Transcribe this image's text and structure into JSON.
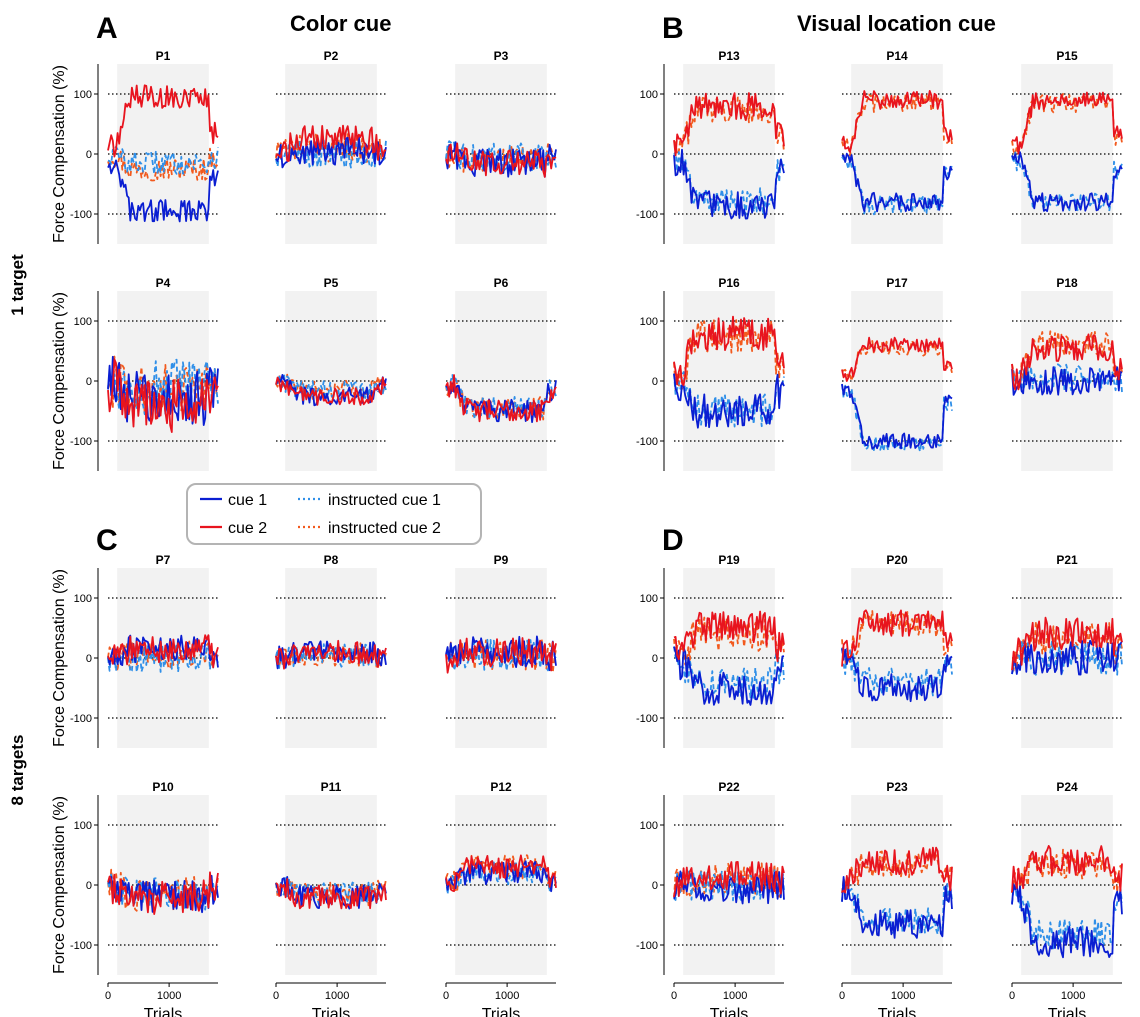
{
  "figure": {
    "panel_letters": [
      "A",
      "B",
      "C",
      "D"
    ],
    "group_titles": {
      "A": "Color cue",
      "B": "Visual location cue"
    },
    "row_labels": {
      "top": "1 target",
      "bottom": "8 targets"
    },
    "ylabel": "Force Compensation (%)",
    "xlabel": "Trials",
    "yticks": [
      "100",
      "0",
      "-100"
    ],
    "xticks": [
      "0",
      "1000"
    ]
  },
  "legend": {
    "entries": [
      {
        "label": "cue 1",
        "color": "#0a1ed2",
        "style": "solid"
      },
      {
        "label": "instructed cue 1",
        "color": "#2f8fe8",
        "style": "dotted"
      },
      {
        "label": "cue 2",
        "color": "#e8141e",
        "style": "solid"
      },
      {
        "label": "instructed cue 2",
        "color": "#f25a1e",
        "style": "dotted"
      }
    ]
  },
  "chart_data": {
    "type": "line",
    "xlim": [
      0,
      1800
    ],
    "ylim": [
      -150,
      150
    ],
    "shaded_trials": [
      150,
      1650
    ],
    "reference_lines": [
      100,
      0,
      -100
    ],
    "grid": false,
    "legend_position": "center",
    "series_colors": {
      "cue1": "#0a1ed2",
      "inst1": "#2f8fe8",
      "cue2": "#e8141e",
      "inst2": "#f25a1e"
    },
    "subplots": [
      {
        "title": "P1",
        "panel": "A",
        "cue1": -95,
        "cue2": 95,
        "inst1": -15,
        "inst2": -25,
        "noise": 15
      },
      {
        "title": "P2",
        "panel": "A",
        "cue1": 5,
        "cue2": 25,
        "inst1": 0,
        "inst2": 10,
        "noise": 18
      },
      {
        "title": "P3",
        "panel": "A",
        "cue1": -15,
        "cue2": -15,
        "inst1": -5,
        "inst2": -10,
        "noise": 18
      },
      {
        "title": "P4",
        "panel": "A",
        "cue1": -30,
        "cue2": -40,
        "inst1": -10,
        "inst2": -15,
        "noise": 35
      },
      {
        "title": "P5",
        "panel": "A",
        "cue1": -25,
        "cue2": -25,
        "inst1": -15,
        "inst2": -15,
        "noise": 12
      },
      {
        "title": "P6",
        "panel": "A",
        "cue1": -50,
        "cue2": -50,
        "inst1": -45,
        "inst2": -45,
        "noise": 15
      },
      {
        "title": "P7",
        "panel": "C",
        "cue1": 15,
        "cue2": 15,
        "inst1": 0,
        "inst2": 5,
        "noise": 18
      },
      {
        "title": "P8",
        "panel": "C",
        "cue1": 10,
        "cue2": 10,
        "inst1": 5,
        "inst2": 5,
        "noise": 15
      },
      {
        "title": "P9",
        "panel": "C",
        "cue1": 10,
        "cue2": 10,
        "inst1": 5,
        "inst2": 5,
        "noise": 20
      },
      {
        "title": "P10",
        "panel": "C",
        "cue1": -20,
        "cue2": -20,
        "inst1": -15,
        "inst2": -15,
        "noise": 22
      },
      {
        "title": "P11",
        "panel": "C",
        "cue1": -20,
        "cue2": -20,
        "inst1": -15,
        "inst2": -15,
        "noise": 15
      },
      {
        "title": "P12",
        "panel": "C",
        "cue1": 20,
        "cue2": 30,
        "inst1": 20,
        "inst2": 30,
        "noise": 15
      },
      {
        "title": "P13",
        "panel": "B",
        "cue1": -85,
        "cue2": 80,
        "inst1": -80,
        "inst2": 75,
        "noise": 18
      },
      {
        "title": "P14",
        "panel": "B",
        "cue1": -80,
        "cue2": 90,
        "inst1": -85,
        "inst2": 85,
        "noise": 12
      },
      {
        "title": "P15",
        "panel": "B",
        "cue1": -80,
        "cue2": 90,
        "inst1": -80,
        "inst2": 85,
        "noise": 12
      },
      {
        "title": "P16",
        "panel": "B",
        "cue1": -50,
        "cue2": 80,
        "inst1": -50,
        "inst2": 75,
        "noise": 22
      },
      {
        "title": "P17",
        "panel": "B",
        "cue1": -100,
        "cue2": 60,
        "inst1": -105,
        "inst2": 55,
        "noise": 10
      },
      {
        "title": "P18",
        "panel": "B",
        "cue1": 0,
        "cue2": 55,
        "inst1": 5,
        "inst2": 60,
        "noise": 18
      },
      {
        "title": "P19",
        "panel": "D",
        "cue1": -50,
        "cue2": 50,
        "inst1": -45,
        "inst2": 40,
        "noise": 22
      },
      {
        "title": "P20",
        "panel": "D",
        "cue1": -50,
        "cue2": 60,
        "inst1": -40,
        "inst2": 55,
        "noise": 18
      },
      {
        "title": "P21",
        "panel": "D",
        "cue1": 0,
        "cue2": 40,
        "inst1": 0,
        "inst2": 35,
        "noise": 22
      },
      {
        "title": "P22",
        "panel": "D",
        "cue1": -5,
        "cue2": 15,
        "inst1": 0,
        "inst2": 10,
        "noise": 20
      },
      {
        "title": "P23",
        "panel": "D",
        "cue1": -65,
        "cue2": 40,
        "inst1": -60,
        "inst2": 35,
        "noise": 18
      },
      {
        "title": "P24",
        "panel": "D",
        "cue1": -95,
        "cue2": 40,
        "inst1": -80,
        "inst2": 35,
        "noise": 20
      }
    ]
  }
}
